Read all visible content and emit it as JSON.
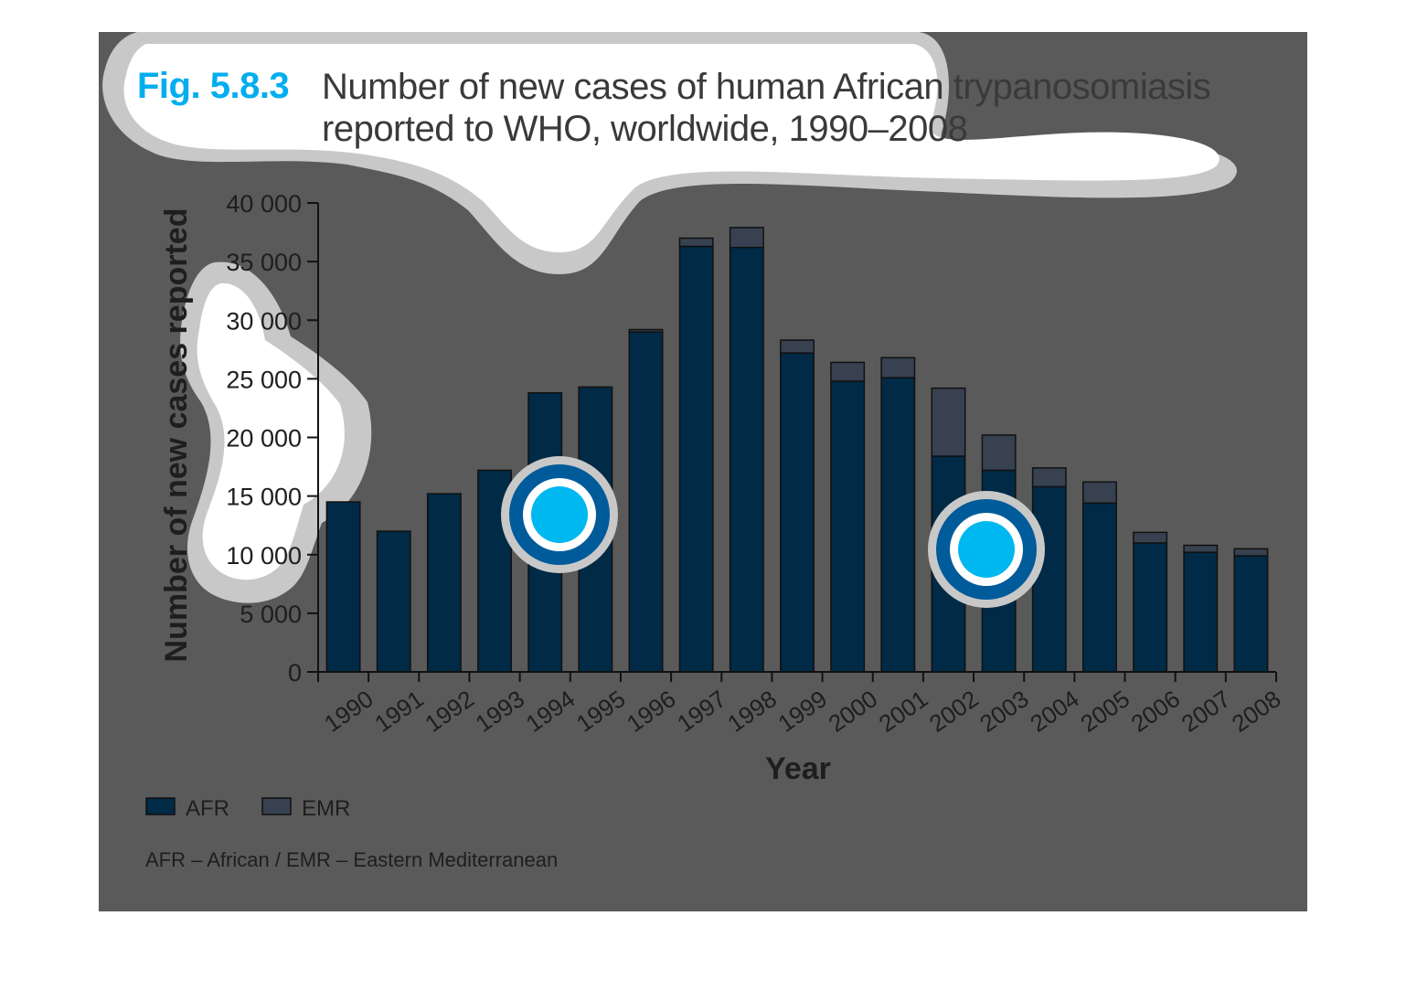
{
  "figure": {
    "label": "Fig. 5.8.3",
    "title": "Number of new cases of human African trypanosomiasis reported to WHO, worldwide, 1990–2008",
    "footnote": "AFR – African / EMR – Eastern Mediterranean"
  },
  "colors": {
    "background": "#5a5a5a",
    "afr": "#002a45",
    "emr": "#374150",
    "accent": "#00aeef",
    "halo": "#c8c8c8",
    "text": "#1e1e1e"
  },
  "chart_data": {
    "type": "bar",
    "stacked": true,
    "title": "Number of new cases of human African trypanosomiasis reported to WHO, worldwide, 1990–2008",
    "xlabel": "Year",
    "ylabel": "Number of new cases reported",
    "ylim": [
      0,
      40000
    ],
    "yticks": [
      0,
      5000,
      10000,
      15000,
      20000,
      25000,
      30000,
      35000,
      40000
    ],
    "ytick_labels": [
      "0",
      "5 000",
      "10 000",
      "15 000",
      "20 000",
      "25 000",
      "30 000",
      "35 000",
      "40 000"
    ],
    "categories": [
      "1990",
      "1991",
      "1992",
      "1993",
      "1994",
      "1995",
      "1996",
      "1997",
      "1998",
      "1999",
      "2000",
      "2001",
      "2002",
      "2003",
      "2004",
      "2005",
      "2006",
      "2007",
      "2008"
    ],
    "series": [
      {
        "name": "AFR",
        "color": "#002a45",
        "values": [
          14500,
          12000,
          15200,
          17200,
          23800,
          24300,
          29000,
          36300,
          36200,
          27200,
          24800,
          25100,
          18400,
          17200,
          15800,
          14400,
          11000,
          10200,
          9900
        ]
      },
      {
        "name": "EMR",
        "color": "#374150",
        "values": [
          0,
          0,
          0,
          0,
          0,
          0,
          200,
          700,
          1700,
          1100,
          1600,
          1700,
          5800,
          3000,
          1600,
          1800,
          900,
          600,
          600
        ]
      }
    ],
    "legend": {
      "placement": "bottom-left",
      "entries": [
        "AFR",
        "EMR"
      ]
    },
    "grid": false
  }
}
